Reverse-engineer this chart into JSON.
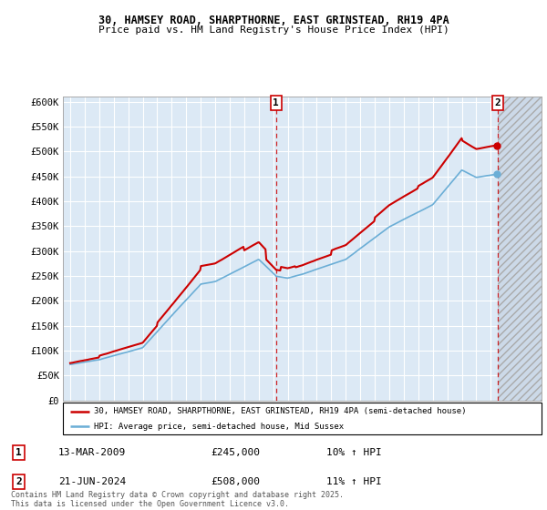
{
  "title_line1": "30, HAMSEY ROAD, SHARPTHORNE, EAST GRINSTEAD, RH19 4PA",
  "title_line2": "Price paid vs. HM Land Registry's House Price Index (HPI)",
  "ylabel_ticks": [
    "£0",
    "£50K",
    "£100K",
    "£150K",
    "£200K",
    "£250K",
    "£300K",
    "£350K",
    "£400K",
    "£450K",
    "£500K",
    "£550K",
    "£600K"
  ],
  "ytick_values": [
    0,
    50000,
    100000,
    150000,
    200000,
    250000,
    300000,
    350000,
    400000,
    450000,
    500000,
    550000,
    600000
  ],
  "xmin": 1994.5,
  "xmax": 2027.5,
  "ymin": 0,
  "ymax": 610000,
  "marker1_x": 2009.2,
  "marker1_label": "1",
  "marker2_x": 2024.47,
  "marker2_label": "2",
  "annotation1_date": "13-MAR-2009",
  "annotation1_price": "£245,000",
  "annotation1_hpi": "10% ↑ HPI",
  "annotation2_date": "21-JUN-2024",
  "annotation2_price": "£508,000",
  "annotation2_hpi": "11% ↑ HPI",
  "legend_line1": "30, HAMSEY ROAD, SHARPTHORNE, EAST GRINSTEAD, RH19 4PA (semi-detached house)",
  "legend_line2": "HPI: Average price, semi-detached house, Mid Sussex",
  "footer": "Contains HM Land Registry data © Crown copyright and database right 2025.\nThis data is licensed under the Open Government Licence v3.0.",
  "line1_color": "#cc0000",
  "line2_color": "#6baed6",
  "background_color": "#ffffff",
  "plot_bg_color": "#dce9f5",
  "grid_color": "#ffffff",
  "vline_color": "#cc0000",
  "hatch_bg_color": "#ccd9e8"
}
